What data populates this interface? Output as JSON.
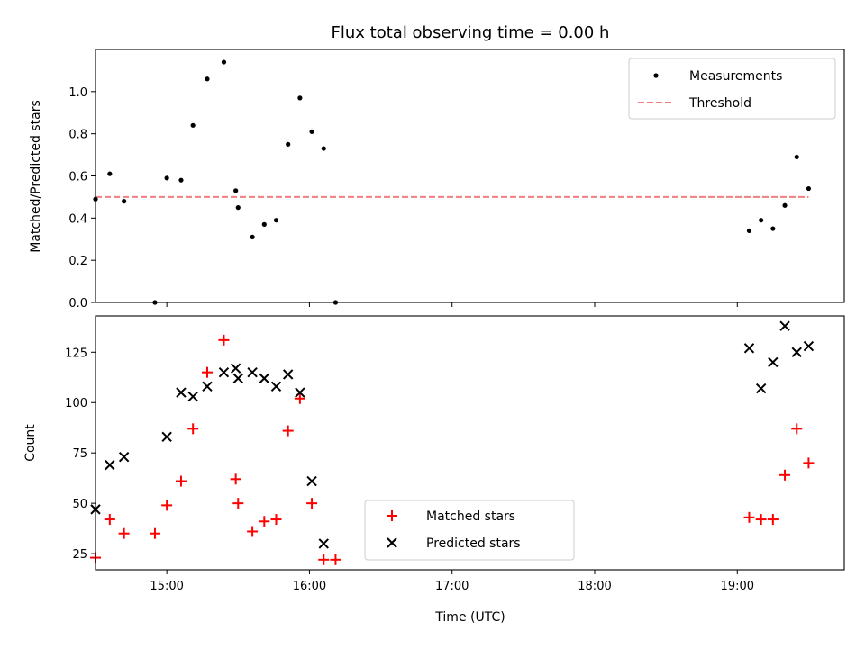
{
  "chart_data": [
    {
      "type": "scatter",
      "title": "Flux total observing time = 0.00 h",
      "ylabel": "Matched/Predicted stars",
      "xlabel": "",
      "xlim": [
        "14:30",
        "19:45"
      ],
      "ylim": [
        0,
        1.2
      ],
      "yticks": [
        "0.0",
        "0.2",
        "0.4",
        "0.6",
        "0.8",
        "1.0"
      ],
      "legend_position": "upper right",
      "threshold": {
        "name": "Threshold",
        "value": 0.5,
        "x_range": [
          "14:30",
          "19:30"
        ],
        "color": "#f08080",
        "style": "dashed"
      },
      "series": [
        {
          "name": "Measurements",
          "color": "#000000",
          "marker": "dot",
          "points": [
            [
              "14:30",
              0.49
            ],
            [
              "14:36",
              0.61
            ],
            [
              "14:42",
              0.48
            ],
            [
              "14:55",
              0.0
            ],
            [
              "15:00",
              0.59
            ],
            [
              "15:06",
              0.58
            ],
            [
              "15:11",
              0.84
            ],
            [
              "15:17",
              1.06
            ],
            [
              "15:24",
              1.14
            ],
            [
              "15:29",
              0.53
            ],
            [
              "15:30",
              0.45
            ],
            [
              "15:36",
              0.31
            ],
            [
              "15:41",
              0.37
            ],
            [
              "15:46",
              0.39
            ],
            [
              "15:51",
              0.75
            ],
            [
              "15:56",
              0.97
            ],
            [
              "16:01",
              0.81
            ],
            [
              "16:06",
              0.73
            ],
            [
              "16:11",
              0.0
            ],
            [
              "19:05",
              0.34
            ],
            [
              "19:10",
              0.39
            ],
            [
              "19:15",
              0.35
            ],
            [
              "19:20",
              0.46
            ],
            [
              "19:25",
              0.69
            ],
            [
              "19:30",
              0.54
            ]
          ]
        }
      ]
    },
    {
      "type": "scatter",
      "title": "",
      "ylabel": "Count",
      "xlabel": "Time (UTC)",
      "xlim": [
        "14:30",
        "19:45"
      ],
      "ylim": [
        17,
        143
      ],
      "yticks": [
        "25",
        "50",
        "75",
        "100",
        "125"
      ],
      "xticks": [
        "15:00",
        "16:00",
        "17:00",
        "18:00",
        "19:00"
      ],
      "legend_position": "lower center",
      "series": [
        {
          "name": "Matched stars",
          "color": "#ff0000",
          "marker": "plus",
          "points": [
            [
              "14:30",
              23
            ],
            [
              "14:36",
              42
            ],
            [
              "14:42",
              35
            ],
            [
              "14:55",
              35
            ],
            [
              "15:00",
              49
            ],
            [
              "15:06",
              61
            ],
            [
              "15:11",
              87
            ],
            [
              "15:17",
              115
            ],
            [
              "15:24",
              131
            ],
            [
              "15:29",
              62
            ],
            [
              "15:30",
              50
            ],
            [
              "15:36",
              36
            ],
            [
              "15:41",
              41
            ],
            [
              "15:46",
              42
            ],
            [
              "15:51",
              86
            ],
            [
              "15:56",
              102
            ],
            [
              "16:01",
              50
            ],
            [
              "16:06",
              22
            ],
            [
              "16:11",
              22
            ],
            [
              "19:05",
              43
            ],
            [
              "19:10",
              42
            ],
            [
              "19:15",
              42
            ],
            [
              "19:20",
              64
            ],
            [
              "19:25",
              87
            ],
            [
              "19:30",
              70
            ]
          ]
        },
        {
          "name": "Predicted stars",
          "color": "#000000",
          "marker": "x",
          "points": [
            [
              "14:30",
              47
            ],
            [
              "14:36",
              69
            ],
            [
              "14:42",
              73
            ],
            [
              "15:00",
              83
            ],
            [
              "15:06",
              105
            ],
            [
              "15:11",
              103
            ],
            [
              "15:17",
              108
            ],
            [
              "15:24",
              115
            ],
            [
              "15:29",
              117
            ],
            [
              "15:30",
              112
            ],
            [
              "15:36",
              115
            ],
            [
              "15:41",
              112
            ],
            [
              "15:46",
              108
            ],
            [
              "15:51",
              114
            ],
            [
              "15:56",
              105
            ],
            [
              "16:01",
              61
            ],
            [
              "16:06",
              30
            ],
            [
              "19:05",
              127
            ],
            [
              "19:10",
              107
            ],
            [
              "19:15",
              120
            ],
            [
              "19:20",
              138
            ],
            [
              "19:25",
              125
            ],
            [
              "19:30",
              128
            ]
          ]
        }
      ]
    }
  ]
}
